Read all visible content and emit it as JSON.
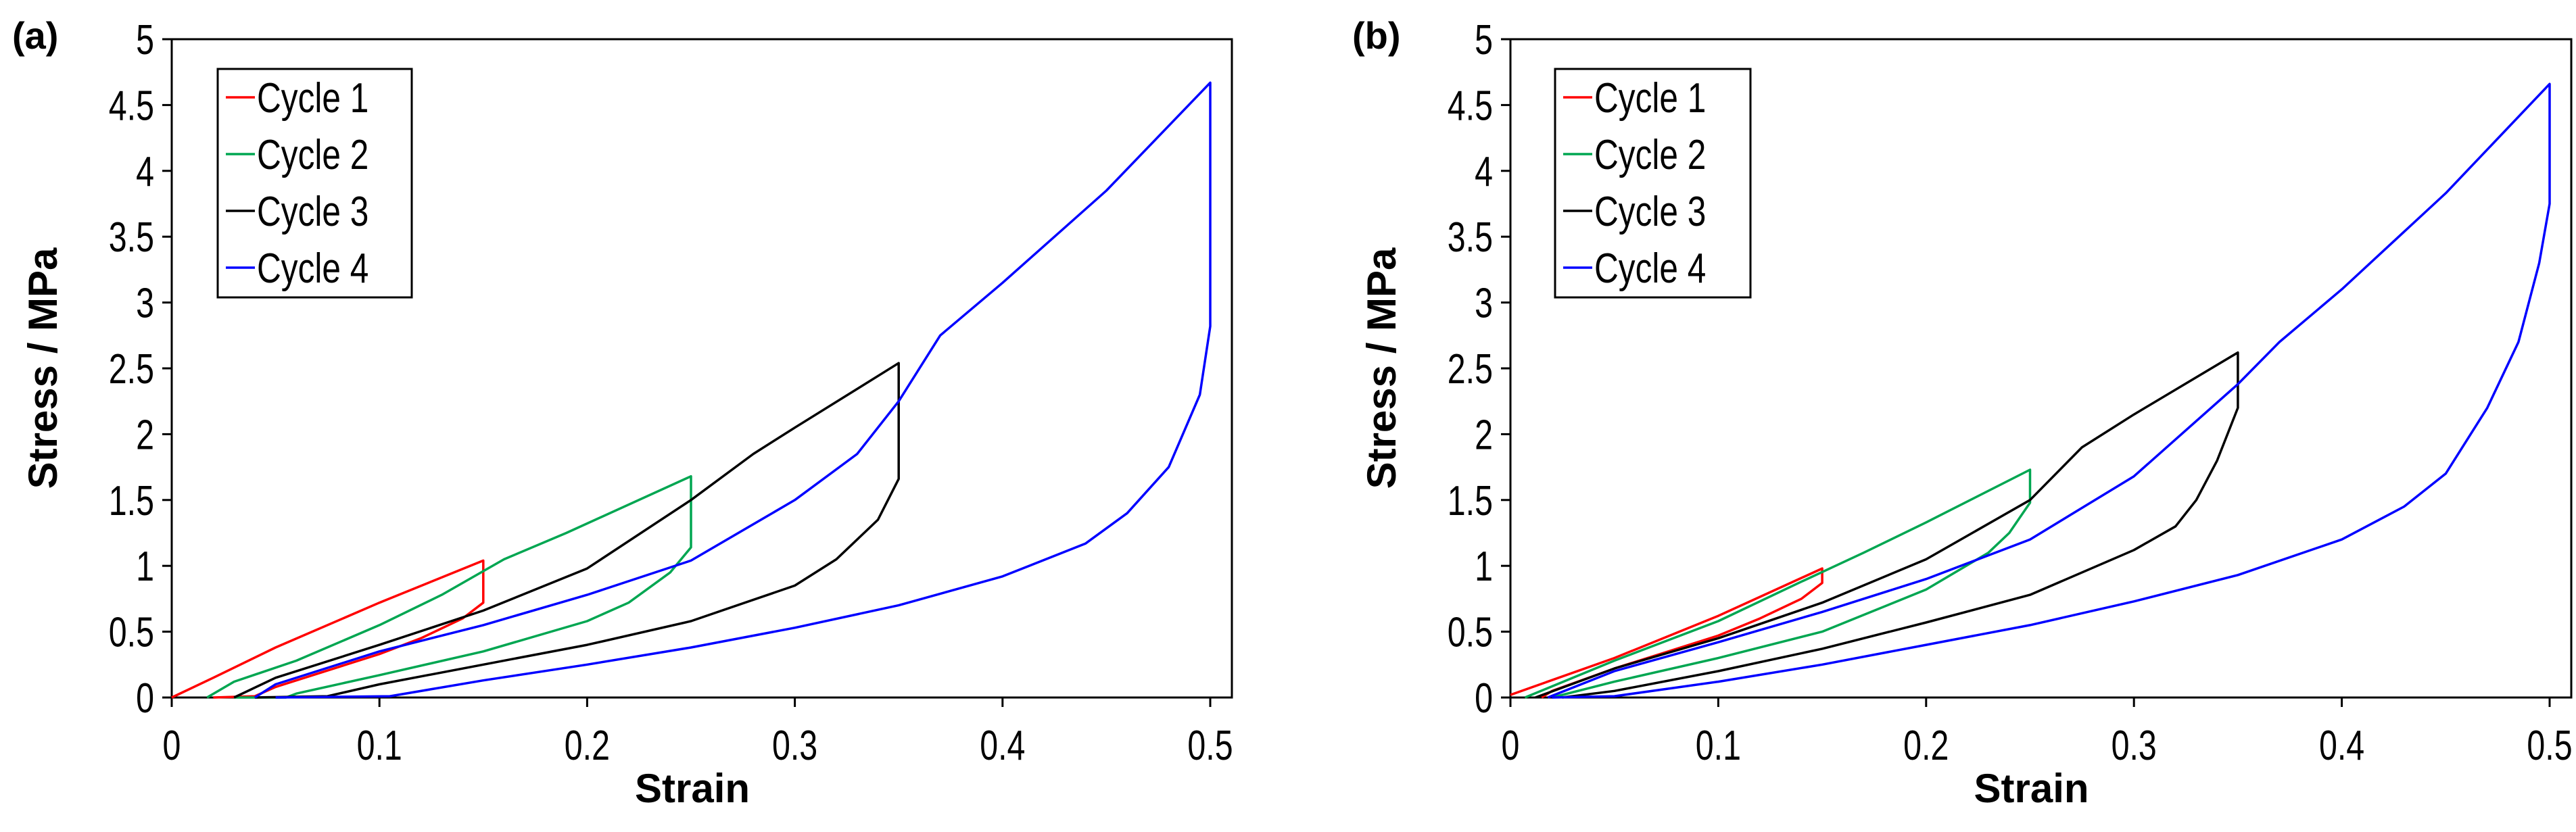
{
  "chart_data": [
    {
      "type": "line",
      "panel_label": "(a)",
      "xlabel": "Strain",
      "ylabel": "Stress / MPa",
      "xlim": [
        0,
        0.5
      ],
      "ylim": [
        0,
        5
      ],
      "xticks": [
        "0",
        "0.1",
        "0.2",
        "0.3",
        "0.4",
        "0.5"
      ],
      "yticks": [
        "0",
        "0.5",
        "1",
        "1.5",
        "2",
        "2.5",
        "3",
        "3.5",
        "4",
        "4.5",
        "5"
      ],
      "legend_position": "top-left",
      "grid": false,
      "series": [
        {
          "name": "Cycle 1",
          "color": "#ff0000",
          "points": [
            [
              0,
              0
            ],
            [
              0.02,
              0.15
            ],
            [
              0.05,
              0.38
            ],
            [
              0.1,
              0.72
            ],
            [
              0.15,
              1.04
            ],
            [
              0.15,
              0.72
            ],
            [
              0.14,
              0.6
            ],
            [
              0.12,
              0.45
            ],
            [
              0.1,
              0.33
            ],
            [
              0.07,
              0.18
            ],
            [
              0.05,
              0.08
            ],
            [
              0.04,
              0.01
            ],
            [
              0.02,
              0
            ]
          ]
        },
        {
          "name": "Cycle 2",
          "color": "#00a651",
          "points": [
            [
              0.017,
              0
            ],
            [
              0.03,
              0.12
            ],
            [
              0.06,
              0.28
            ],
            [
              0.1,
              0.55
            ],
            [
              0.13,
              0.78
            ],
            [
              0.16,
              1.05
            ],
            [
              0.19,
              1.25
            ],
            [
              0.25,
              1.68
            ],
            [
              0.25,
              1.14
            ],
            [
              0.24,
              0.95
            ],
            [
              0.22,
              0.72
            ],
            [
              0.2,
              0.58
            ],
            [
              0.15,
              0.35
            ],
            [
              0.1,
              0.17
            ],
            [
              0.06,
              0.03
            ],
            [
              0.055,
              0
            ],
            [
              0.03,
              0
            ]
          ]
        },
        {
          "name": "Cycle 3",
          "color": "#000000",
          "points": [
            [
              0.03,
              0
            ],
            [
              0.05,
              0.15
            ],
            [
              0.1,
              0.4
            ],
            [
              0.15,
              0.66
            ],
            [
              0.2,
              0.98
            ],
            [
              0.25,
              1.5
            ],
            [
              0.28,
              1.85
            ],
            [
              0.3,
              2.05
            ],
            [
              0.35,
              2.54
            ],
            [
              0.35,
              1.66
            ],
            [
              0.34,
              1.35
            ],
            [
              0.32,
              1.05
            ],
            [
              0.3,
              0.85
            ],
            [
              0.25,
              0.58
            ],
            [
              0.2,
              0.4
            ],
            [
              0.15,
              0.25
            ],
            [
              0.1,
              0.1
            ],
            [
              0.075,
              0.01
            ],
            [
              0.04,
              0
            ]
          ]
        },
        {
          "name": "Cycle 4",
          "color": "#0000ff",
          "points": [
            [
              0.04,
              0
            ],
            [
              0.05,
              0.1
            ],
            [
              0.1,
              0.35
            ],
            [
              0.15,
              0.55
            ],
            [
              0.2,
              0.78
            ],
            [
              0.25,
              1.04
            ],
            [
              0.3,
              1.5
            ],
            [
              0.33,
              1.85
            ],
            [
              0.35,
              2.25
            ],
            [
              0.37,
              2.75
            ],
            [
              0.4,
              3.15
            ],
            [
              0.45,
              3.85
            ],
            [
              0.5,
              4.67
            ],
            [
              0.5,
              2.82
            ],
            [
              0.495,
              2.3
            ],
            [
              0.48,
              1.75
            ],
            [
              0.46,
              1.4
            ],
            [
              0.44,
              1.17
            ],
            [
              0.4,
              0.92
            ],
            [
              0.35,
              0.7
            ],
            [
              0.3,
              0.53
            ],
            [
              0.25,
              0.38
            ],
            [
              0.2,
              0.25
            ],
            [
              0.15,
              0.13
            ],
            [
              0.105,
              0.01
            ],
            [
              0.05,
              0
            ]
          ]
        }
      ]
    },
    {
      "type": "line",
      "panel_label": "(b)",
      "xlabel": "Strain",
      "ylabel": "Stress / MPa",
      "xlim": [
        0,
        0.5
      ],
      "ylim": [
        0,
        5
      ],
      "xticks": [
        "0",
        "0.1",
        "0.2",
        "0.3",
        "0.4",
        "0.5"
      ],
      "yticks": [
        "0",
        "0.5",
        "1",
        "1.5",
        "2",
        "2.5",
        "3",
        "3.5",
        "4",
        "4.5",
        "5"
      ],
      "legend_position": "top-left",
      "grid": false,
      "series": [
        {
          "name": "Cycle 1",
          "color": "#ff0000",
          "points": [
            [
              0,
              0.02
            ],
            [
              0.05,
              0.3
            ],
            [
              0.1,
              0.62
            ],
            [
              0.15,
              0.98
            ],
            [
              0.15,
              0.87
            ],
            [
              0.14,
              0.75
            ],
            [
              0.12,
              0.6
            ],
            [
              0.1,
              0.47
            ],
            [
              0.05,
              0.22
            ],
            [
              0.02,
              0.05
            ],
            [
              0.015,
              0
            ]
          ]
        },
        {
          "name": "Cycle 2",
          "color": "#00a651",
          "points": [
            [
              0.007,
              0
            ],
            [
              0.05,
              0.28
            ],
            [
              0.1,
              0.58
            ],
            [
              0.14,
              0.88
            ],
            [
              0.17,
              1.1
            ],
            [
              0.2,
              1.33
            ],
            [
              0.25,
              1.73
            ],
            [
              0.25,
              1.48
            ],
            [
              0.24,
              1.25
            ],
            [
              0.23,
              1.1
            ],
            [
              0.2,
              0.82
            ],
            [
              0.15,
              0.5
            ],
            [
              0.1,
              0.3
            ],
            [
              0.05,
              0.12
            ],
            [
              0.02,
              0
            ]
          ]
        },
        {
          "name": "Cycle 3",
          "color": "#000000",
          "points": [
            [
              0.012,
              0
            ],
            [
              0.05,
              0.22
            ],
            [
              0.1,
              0.45
            ],
            [
              0.15,
              0.72
            ],
            [
              0.2,
              1.05
            ],
            [
              0.25,
              1.5
            ],
            [
              0.275,
              1.9
            ],
            [
              0.3,
              2.15
            ],
            [
              0.35,
              2.62
            ],
            [
              0.35,
              2.2
            ],
            [
              0.34,
              1.8
            ],
            [
              0.33,
              1.5
            ],
            [
              0.32,
              1.3
            ],
            [
              0.3,
              1.12
            ],
            [
              0.25,
              0.78
            ],
            [
              0.2,
              0.57
            ],
            [
              0.15,
              0.37
            ],
            [
              0.1,
              0.2
            ],
            [
              0.05,
              0.05
            ],
            [
              0.025,
              0
            ]
          ]
        },
        {
          "name": "Cycle 4",
          "color": "#0000ff",
          "points": [
            [
              0.018,
              0
            ],
            [
              0.05,
              0.2
            ],
            [
              0.1,
              0.42
            ],
            [
              0.15,
              0.65
            ],
            [
              0.2,
              0.9
            ],
            [
              0.25,
              1.2
            ],
            [
              0.3,
              1.68
            ],
            [
              0.35,
              2.38
            ],
            [
              0.37,
              2.7
            ],
            [
              0.4,
              3.1
            ],
            [
              0.45,
              3.83
            ],
            [
              0.5,
              4.66
            ],
            [
              0.5,
              3.75
            ],
            [
              0.495,
              3.3
            ],
            [
              0.485,
              2.7
            ],
            [
              0.47,
              2.2
            ],
            [
              0.45,
              1.7
            ],
            [
              0.43,
              1.45
            ],
            [
              0.4,
              1.2
            ],
            [
              0.35,
              0.93
            ],
            [
              0.3,
              0.73
            ],
            [
              0.25,
              0.55
            ],
            [
              0.2,
              0.4
            ],
            [
              0.15,
              0.25
            ],
            [
              0.1,
              0.12
            ],
            [
              0.05,
              0.01
            ],
            [
              0.02,
              0
            ]
          ]
        }
      ]
    }
  ]
}
